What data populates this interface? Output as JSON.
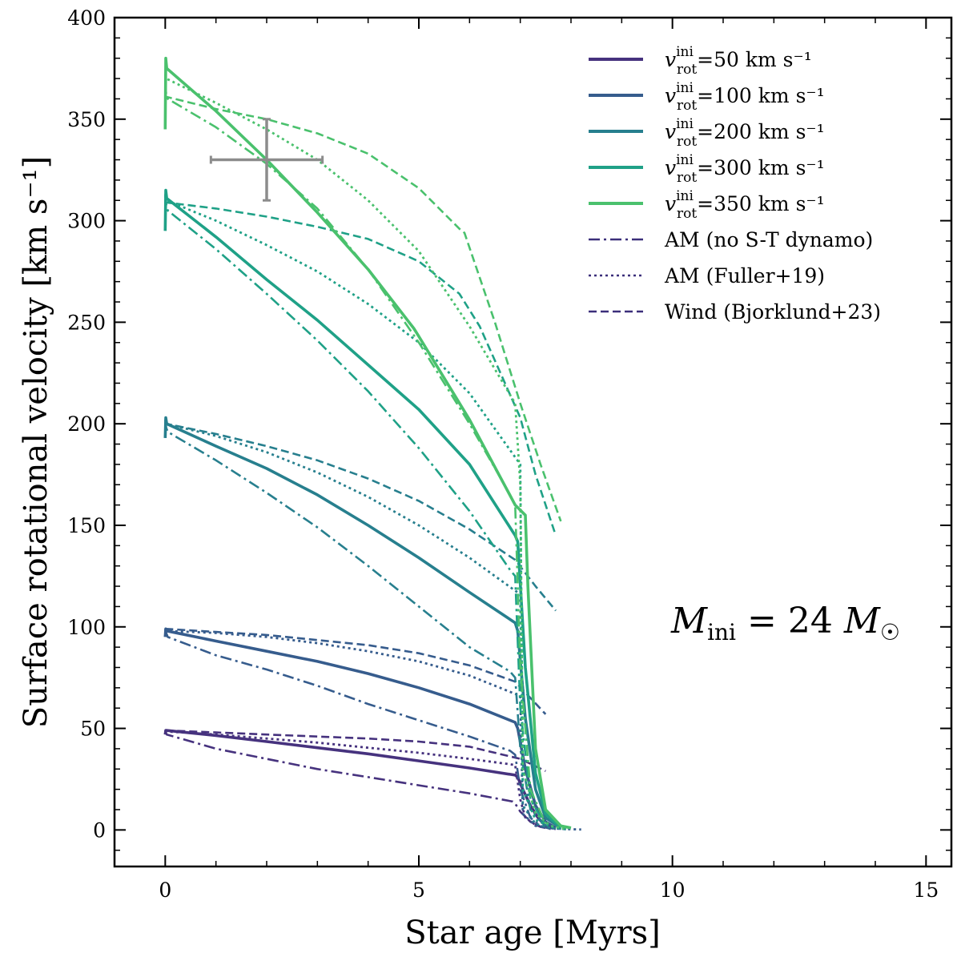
{
  "chart_data": {
    "type": "line",
    "xlabel": "Star age [Myrs]",
    "ylabel": "Surface rotational velocity [km s⁻¹]",
    "xlim": [
      -1,
      15.5
    ],
    "ylim": [
      -18,
      400
    ],
    "xticks": [
      0,
      5,
      10,
      15
    ],
    "yticks": [
      0,
      50,
      100,
      150,
      200,
      250,
      300,
      350,
      400
    ],
    "colors": {
      "50": "#46327e",
      "100": "#365c8d",
      "200": "#277f8e",
      "300": "#1fa187",
      "350": "#4ac16d",
      "legend_style": "#3b2f7a",
      "observation": "#8c8c8c"
    },
    "legend": [
      {
        "text": "v_rot^ini=50 km s⁻¹",
        "prefix": "v",
        "sup": "ini",
        "sub": "rot",
        "suffix": "=50 km s⁻¹",
        "color_key": "50",
        "dash": "solid"
      },
      {
        "text": "v_rot^ini=100 km s⁻¹",
        "prefix": "v",
        "sup": "ini",
        "sub": "rot",
        "suffix": "=100 km s⁻¹",
        "color_key": "100",
        "dash": "solid"
      },
      {
        "text": "v_rot^ini=200 km s⁻¹",
        "prefix": "v",
        "sup": "ini",
        "sub": "rot",
        "suffix": "=200 km s⁻¹",
        "color_key": "200",
        "dash": "solid"
      },
      {
        "text": "v_rot^ini=300 km s⁻¹",
        "prefix": "v",
        "sup": "ini",
        "sub": "rot",
        "suffix": "=300 km s⁻¹",
        "color_key": "300",
        "dash": "solid"
      },
      {
        "text": "v_rot^ini=350 km s⁻¹",
        "prefix": "v",
        "sup": "ini",
        "sub": "rot",
        "suffix": "=350 km s⁻¹",
        "color_key": "350",
        "dash": "solid"
      },
      {
        "text": "AM (no S-T dynamo)",
        "color_key": "legend_style",
        "dash": "dashdot"
      },
      {
        "text": "AM (Fuller+19)",
        "color_key": "legend_style",
        "dash": "dotted"
      },
      {
        "text": "Wind (Bjorklund+23)",
        "color_key": "legend_style",
        "dash": "dashed"
      }
    ],
    "annotation": {
      "text": "M_ini = 24 M☉",
      "main": "M",
      "sub": "ini",
      "rest": " = 24 ",
      "mass": "M",
      "sun": "☉"
    },
    "observation": {
      "x": 2,
      "y": 330,
      "xerr": 1.1,
      "yerr": 20
    },
    "series": [
      {
        "group": "50",
        "style": "solid",
        "x": [
          0,
          0.01,
          0.02,
          1,
          2,
          3,
          4,
          5,
          6,
          6.9,
          6.95,
          7.05,
          7.2,
          7.35,
          7.5,
          7.65
        ],
        "y": [
          47,
          49,
          49,
          46.5,
          43.5,
          40.5,
          37.5,
          34,
          30.5,
          27,
          26,
          20,
          12,
          6,
          2,
          1
        ]
      },
      {
        "group": "50",
        "style": "dashdot",
        "x": [
          0,
          0.01,
          0.03,
          1,
          2,
          3,
          4,
          5,
          6,
          6.85,
          6.9,
          7.0,
          7.2,
          7.4,
          7.6
        ],
        "y": [
          49,
          48,
          47,
          40,
          35,
          30,
          26,
          22,
          18,
          14,
          13,
          9,
          4,
          1.5,
          0.5
        ]
      },
      {
        "group": "50",
        "style": "dotted",
        "x": [
          0,
          0.02,
          1,
          2,
          3,
          4,
          5,
          6,
          6.9,
          7.0,
          7.1,
          7.3,
          7.5,
          7.7
        ],
        "y": [
          49,
          48.5,
          47,
          45,
          43,
          40.5,
          38,
          35,
          32,
          15,
          6,
          2.5,
          1,
          0.5
        ]
      },
      {
        "group": "50",
        "style": "dashed",
        "x": [
          0,
          0.02,
          1,
          2,
          3,
          4,
          5,
          6,
          7,
          7.5
        ],
        "y": [
          49,
          49,
          48,
          47,
          46,
          45,
          43.5,
          41,
          35,
          29
        ]
      },
      {
        "group": "100",
        "style": "solid",
        "x": [
          0,
          0.01,
          0.03,
          1,
          2,
          3,
          4,
          5,
          6,
          6.9,
          6.95,
          7.1,
          7.3,
          7.5,
          7.7
        ],
        "y": [
          95,
          99,
          98,
          93,
          88,
          83,
          77,
          70,
          62,
          53,
          50,
          30,
          12,
          4,
          1
        ]
      },
      {
        "group": "100",
        "style": "dashdot",
        "x": [
          0,
          0.02,
          0.05,
          1,
          2,
          3,
          4,
          5,
          6,
          6.8,
          6.9,
          7.0,
          7.2,
          7.4,
          7.6
        ],
        "y": [
          99,
          97,
          95,
          86,
          79,
          71,
          62,
          54,
          46,
          39,
          37,
          20,
          6,
          2,
          0.5
        ]
      },
      {
        "group": "100",
        "style": "dotted",
        "x": [
          0,
          0.02,
          1,
          2,
          3,
          4,
          5,
          6,
          7,
          7.05,
          7.3,
          7.6,
          7.9,
          8.2
        ],
        "y": [
          99,
          98,
          97,
          95,
          92,
          88,
          83,
          76,
          66,
          8,
          2,
          0.8,
          0.4,
          0.2
        ]
      },
      {
        "group": "100",
        "style": "dashed",
        "x": [
          0,
          0.02,
          1,
          2,
          3,
          4,
          5,
          6,
          6.9,
          7.2,
          7.5
        ],
        "y": [
          99,
          99,
          97.5,
          96,
          93.5,
          91,
          87,
          81,
          73,
          65,
          57
        ]
      },
      {
        "group": "200",
        "style": "solid",
        "x": [
          0,
          0.01,
          0.03,
          1,
          2,
          3,
          4,
          5,
          6,
          6.9,
          6.95,
          7.1,
          7.3,
          7.5,
          7.8
        ],
        "y": [
          193,
          203,
          200,
          189,
          178,
          165,
          150,
          134,
          117,
          102,
          98,
          55,
          20,
          6,
          1
        ]
      },
      {
        "group": "200",
        "style": "dashdot",
        "x": [
          0,
          0.02,
          0.05,
          1,
          2,
          3,
          4,
          5,
          6,
          6.8,
          6.9,
          7.0,
          7.2,
          7.5
        ],
        "y": [
          202,
          198,
          196,
          182,
          166,
          149,
          130,
          110,
          90,
          78,
          75,
          40,
          10,
          2
        ]
      },
      {
        "group": "200",
        "style": "dotted",
        "x": [
          0,
          0.02,
          1,
          2,
          3,
          4,
          5,
          6,
          7,
          7.05,
          7.3,
          7.6,
          7.9
        ],
        "y": [
          201,
          200,
          194,
          186,
          176,
          164,
          150,
          134,
          116,
          12,
          3,
          1,
          0.3
        ]
      },
      {
        "group": "200",
        "style": "dashed",
        "x": [
          0,
          0.02,
          1,
          2,
          3,
          4,
          5,
          6,
          6.9,
          7.3,
          7.7
        ],
        "y": [
          201,
          200,
          195,
          189,
          182,
          173,
          162,
          148,
          133,
          120,
          108
        ]
      },
      {
        "group": "300",
        "style": "solid",
        "x": [
          0,
          0.01,
          0.03,
          1,
          2,
          3,
          4,
          5,
          6,
          6.9,
          6.95,
          7.1,
          7.3,
          7.5,
          7.8
        ],
        "y": [
          295,
          315,
          311,
          292,
          271,
          251,
          229,
          207,
          180,
          145,
          142,
          80,
          28,
          8,
          1
        ]
      },
      {
        "group": "300",
        "style": "dashdot",
        "x": [
          0,
          0.02,
          0.05,
          1,
          2,
          3,
          4,
          5,
          6,
          6.8,
          6.9,
          7.0,
          7.2,
          7.5
        ],
        "y": [
          313,
          308,
          305,
          286,
          264,
          241,
          216,
          188,
          157,
          128,
          125,
          60,
          15,
          2
        ]
      },
      {
        "group": "300",
        "style": "dotted",
        "x": [
          0,
          0.02,
          1,
          2,
          3,
          4,
          5,
          6,
          7,
          7.05,
          7.3,
          7.6,
          7.9
        ],
        "y": [
          312,
          310,
          300,
          288,
          275,
          259,
          240,
          215,
          180,
          20,
          5,
          1.5,
          0.4
        ]
      },
      {
        "group": "300",
        "style": "dashed",
        "x": [
          0,
          0.02,
          1,
          2,
          3,
          4,
          5,
          5.8,
          6.2,
          7,
          7.3,
          7.7
        ],
        "y": [
          310,
          309,
          306,
          302,
          297,
          291,
          280,
          264,
          248,
          203,
          175,
          145
        ]
      },
      {
        "group": "350",
        "style": "solid",
        "x": [
          0,
          0.01,
          0.03,
          1,
          2,
          3,
          4,
          4.9,
          5,
          6,
          6.9,
          7.1,
          7.15,
          7.3,
          7.5,
          7.8,
          8.0
        ],
        "y": [
          345,
          380,
          375,
          354,
          330,
          304,
          276,
          247,
          243,
          202,
          160,
          155,
          120,
          40,
          10,
          2,
          1
        ]
      },
      {
        "group": "350",
        "style": "dashdot",
        "x": [
          0,
          0.02,
          0.05,
          1,
          2,
          3,
          4,
          5,
          6,
          6.8,
          6.9,
          7.0,
          7.2,
          7.5
        ],
        "y": [
          368,
          362,
          360,
          346,
          328,
          306,
          276,
          240,
          200,
          165,
          160,
          80,
          20,
          3
        ]
      },
      {
        "group": "350",
        "style": "dotted",
        "x": [
          0,
          0.02,
          1,
          2,
          3,
          4,
          5,
          6,
          6.9,
          7.0,
          7.05,
          7.3,
          7.6,
          7.9
        ],
        "y": [
          372,
          370,
          358,
          345,
          330,
          310,
          285,
          248,
          210,
          170,
          30,
          8,
          2,
          0.5
        ]
      },
      {
        "group": "350",
        "style": "dashed",
        "x": [
          0,
          0.02,
          1,
          2,
          3,
          4,
          5,
          5.8,
          5.9,
          6.5,
          7,
          7.4,
          7.8
        ],
        "y": [
          362,
          361,
          355,
          350,
          343,
          333,
          316,
          296,
          294,
          250,
          210,
          180,
          152
        ]
      }
    ]
  }
}
